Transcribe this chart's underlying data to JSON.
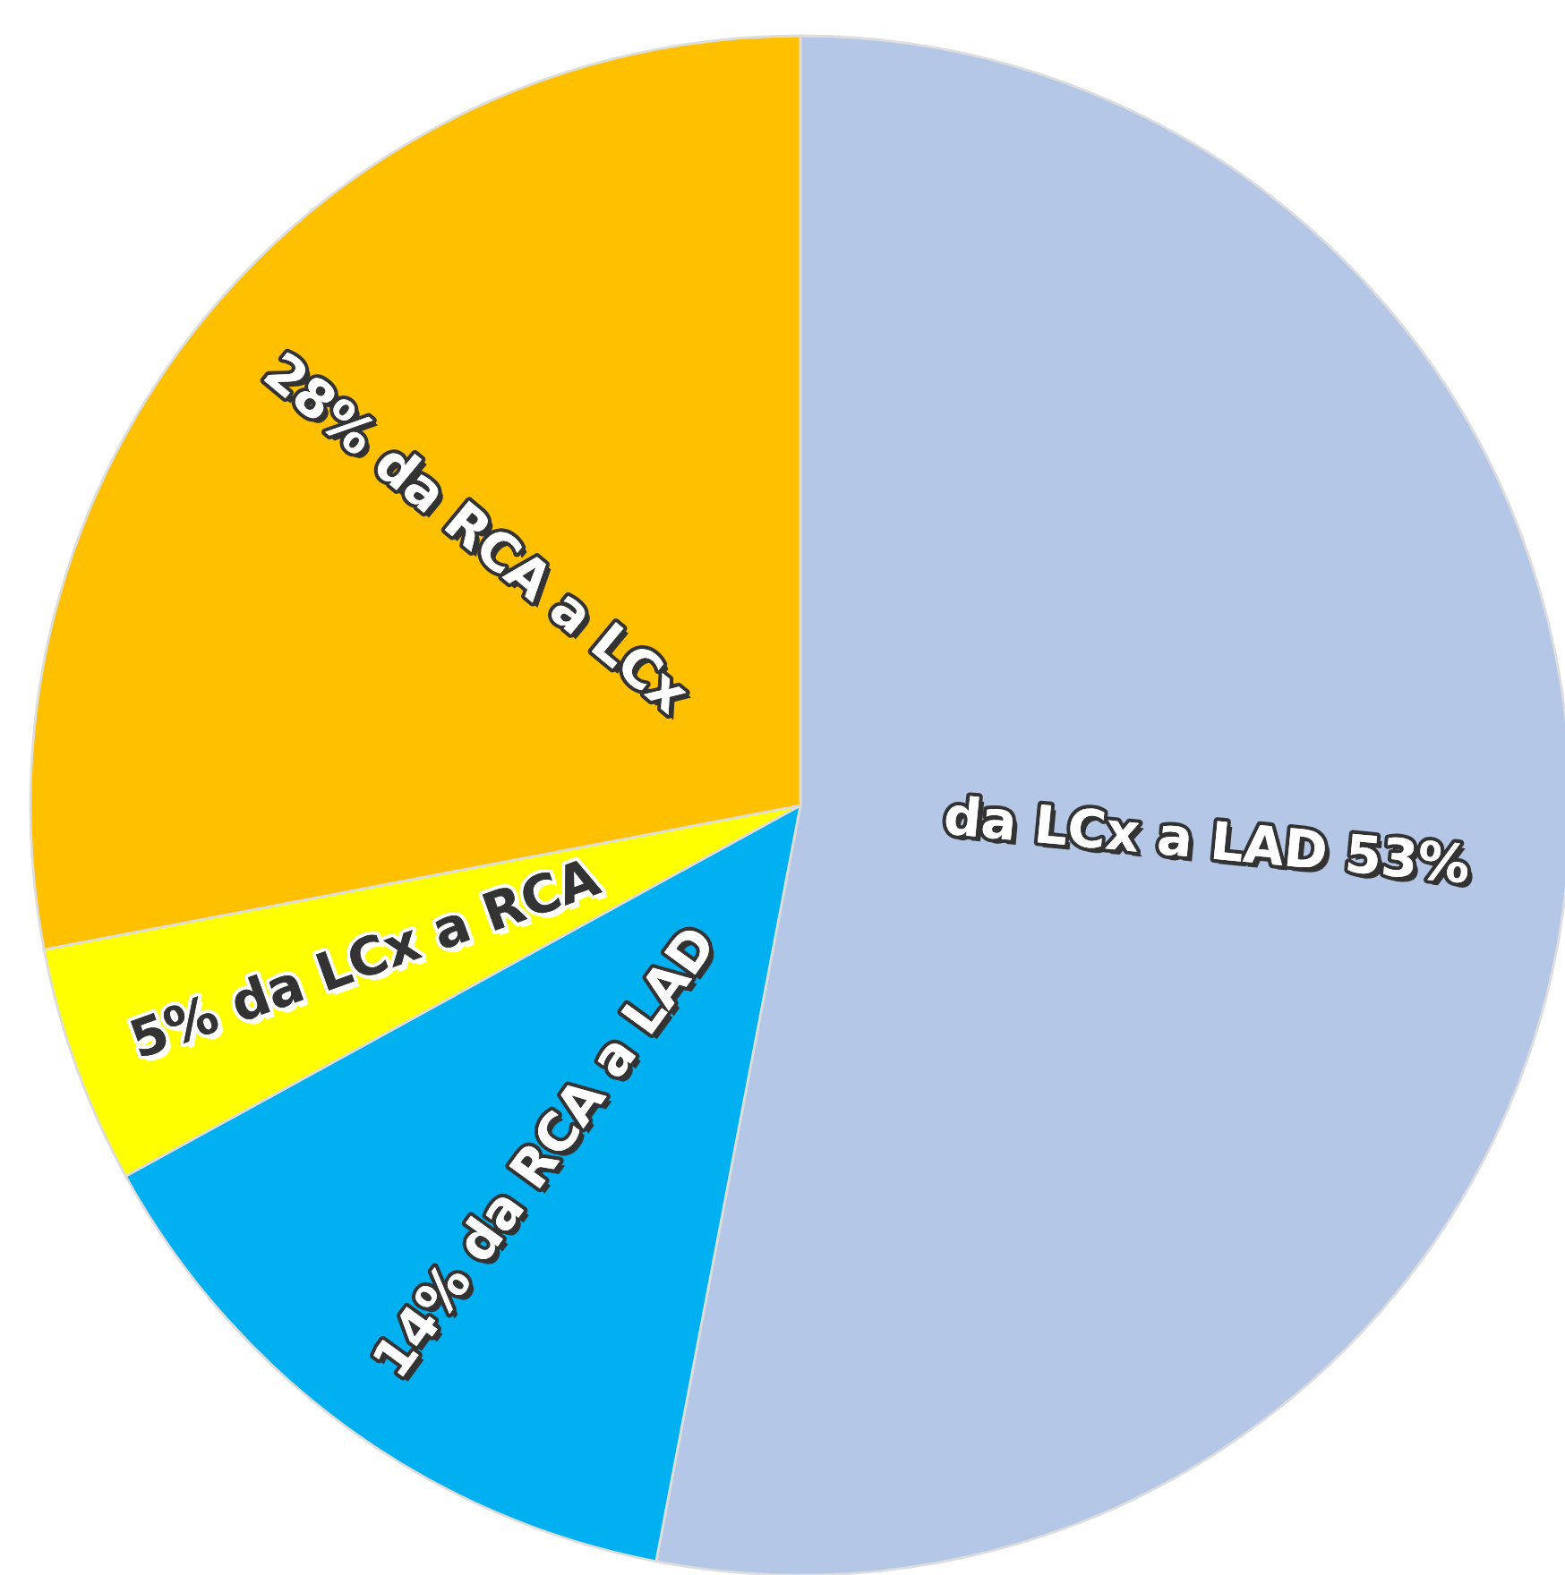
{
  "chart_data": {
    "type": "pie",
    "categories": [
      "da LCx a LAD 53%",
      "14% da RCA a LAD",
      "5% da LCx a RCA",
      "28% da RCA a LCx"
    ],
    "values": [
      53,
      14,
      5,
      28
    ],
    "colors": [
      "#b4c7e7",
      "#00b0f0",
      "#ffff00",
      "#ffc000"
    ]
  }
}
